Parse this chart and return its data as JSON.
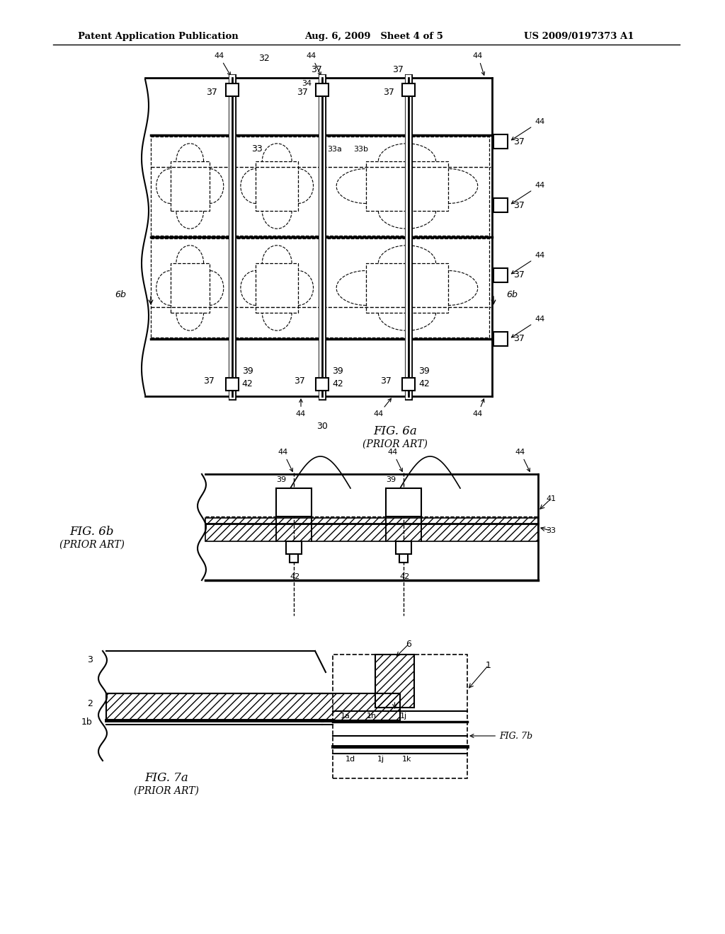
{
  "title_text_left": "Patent Application Publication",
  "title_text_mid": "Aug. 6, 2009   Sheet 4 of 5",
  "title_text_right": "US 2009/0197373 A1",
  "bg_color": "#ffffff",
  "fig6a_label": "FIG. 6a",
  "fig6a_sub": "(PRIOR ART)",
  "fig6b_label": "FIG. 6b",
  "fig6b_sub": "(PRIOR ART)",
  "fig7a_label": "FIG. 7a",
  "fig7a_sub": "(PRIOR ART)",
  "fig7b_label": "FIG. 7b"
}
